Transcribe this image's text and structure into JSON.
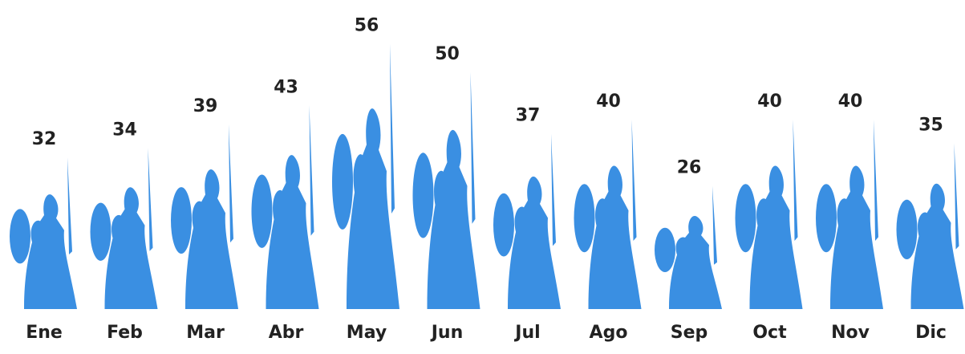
{
  "chart_data": {
    "type": "bar",
    "categories": [
      "Ene",
      "Feb",
      "Mar",
      "Abr",
      "May",
      "Jun",
      "Jul",
      "Ago",
      "Sep",
      "Oct",
      "Nov",
      "Dic"
    ],
    "values": [
      32,
      34,
      39,
      43,
      56,
      50,
      37,
      40,
      26,
      40,
      40,
      35
    ],
    "color": "#3a8fe2"
  }
}
